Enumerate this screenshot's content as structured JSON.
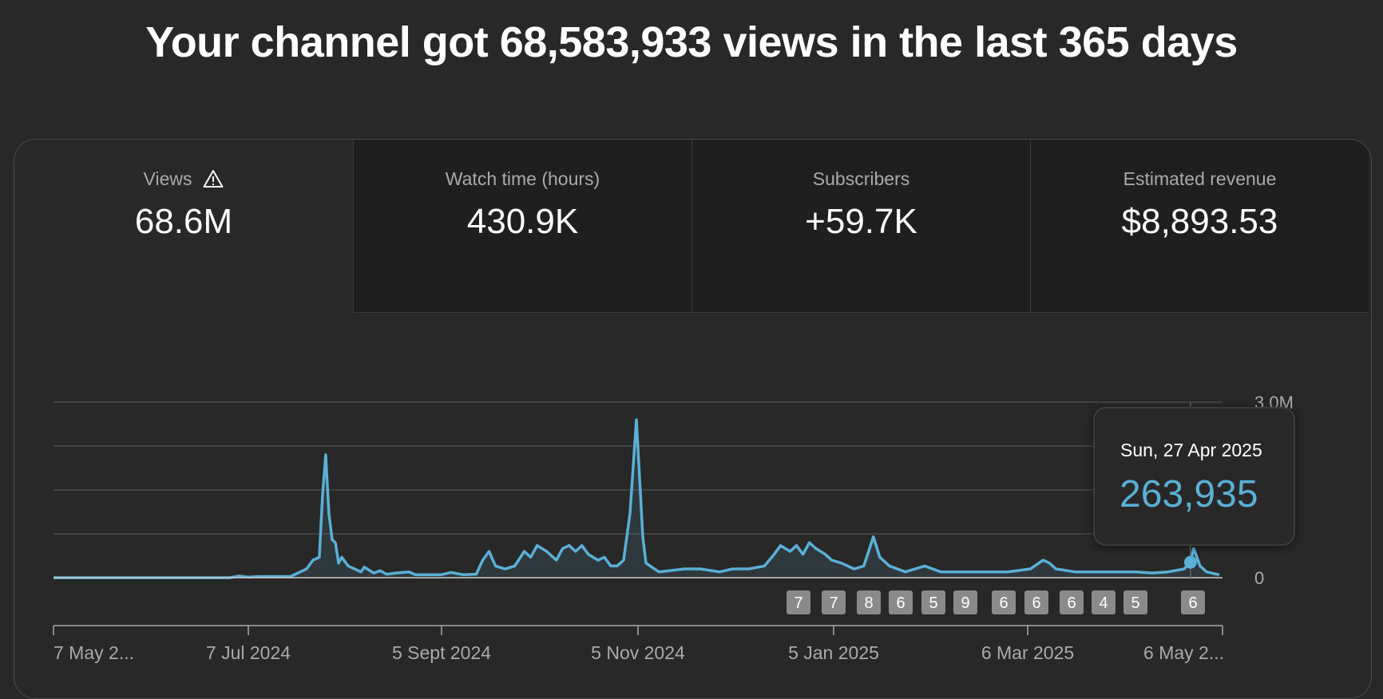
{
  "headline": "Your channel got 68,583,933 views in the last 365 days",
  "tabs": [
    {
      "label": "Views",
      "value": "68.6M",
      "warning": true
    },
    {
      "label": "Watch time (hours)",
      "value": "430.9K"
    },
    {
      "label": "Subscribers",
      "value": "+59.7K"
    },
    {
      "label": "Estimated revenue",
      "value": "$8,893.53"
    }
  ],
  "tooltip": {
    "date": "Sun, 27 Apr 2025",
    "value": "263,935"
  },
  "colors": {
    "line": "#5ab0d6",
    "background": "#282828",
    "tab_inactive": "#1f1f1f"
  },
  "chart_data": {
    "type": "area",
    "title": "",
    "xlabel": "",
    "ylabel": "",
    "x_tick_labels": [
      "7 May 2...",
      "7 Jul 2024",
      "5 Sept 2024",
      "5 Nov 2024",
      "5 Jan 2025",
      "6 Mar 2025",
      "6 May 2..."
    ],
    "x_start": "2024-05-07",
    "y_tick_labels": [
      "3.0M",
      "0"
    ],
    "ylim": [
      0,
      3000000
    ],
    "grid": true,
    "points": [
      [
        "2024-05-07",
        0
      ],
      [
        "2024-07-01",
        0
      ],
      [
        "2024-07-04",
        30000
      ],
      [
        "2024-07-07",
        10000
      ],
      [
        "2024-07-10",
        20000
      ],
      [
        "2024-07-20",
        20000
      ],
      [
        "2024-07-25",
        150000
      ],
      [
        "2024-07-27",
        300000
      ],
      [
        "2024-07-29",
        350000
      ],
      [
        "2024-07-30",
        1400000
      ],
      [
        "2024-07-31",
        2100000
      ],
      [
        "2024-08-01",
        1100000
      ],
      [
        "2024-08-02",
        650000
      ],
      [
        "2024-08-03",
        600000
      ],
      [
        "2024-08-04",
        250000
      ],
      [
        "2024-08-05",
        350000
      ],
      [
        "2024-08-07",
        200000
      ],
      [
        "2024-08-09",
        150000
      ],
      [
        "2024-08-11",
        100000
      ],
      [
        "2024-08-12",
        180000
      ],
      [
        "2024-08-15",
        80000
      ],
      [
        "2024-08-17",
        120000
      ],
      [
        "2024-08-19",
        60000
      ],
      [
        "2024-08-22",
        80000
      ],
      [
        "2024-08-26",
        100000
      ],
      [
        "2024-08-28",
        50000
      ],
      [
        "2024-09-05",
        50000
      ],
      [
        "2024-09-08",
        90000
      ],
      [
        "2024-09-12",
        50000
      ],
      [
        "2024-09-16",
        60000
      ],
      [
        "2024-09-18",
        300000
      ],
      [
        "2024-09-20",
        450000
      ],
      [
        "2024-09-22",
        200000
      ],
      [
        "2024-09-25",
        150000
      ],
      [
        "2024-09-28",
        200000
      ],
      [
        "2024-10-01",
        450000
      ],
      [
        "2024-10-03",
        350000
      ],
      [
        "2024-10-05",
        550000
      ],
      [
        "2024-10-08",
        450000
      ],
      [
        "2024-10-11",
        300000
      ],
      [
        "2024-10-13",
        500000
      ],
      [
        "2024-10-15",
        550000
      ],
      [
        "2024-10-17",
        450000
      ],
      [
        "2024-10-19",
        550000
      ],
      [
        "2024-10-21",
        400000
      ],
      [
        "2024-10-24",
        300000
      ],
      [
        "2024-10-26",
        350000
      ],
      [
        "2024-10-28",
        200000
      ],
      [
        "2024-10-30",
        200000
      ],
      [
        "2024-11-01",
        300000
      ],
      [
        "2024-11-03",
        1100000
      ],
      [
        "2024-11-05",
        2700000
      ],
      [
        "2024-11-07",
        700000
      ],
      [
        "2024-11-08",
        250000
      ],
      [
        "2024-11-12",
        100000
      ],
      [
        "2024-11-20",
        150000
      ],
      [
        "2024-11-25",
        150000
      ],
      [
        "2024-12-01",
        100000
      ],
      [
        "2024-12-05",
        150000
      ],
      [
        "2024-12-10",
        150000
      ],
      [
        "2024-12-15",
        200000
      ],
      [
        "2024-12-18",
        400000
      ],
      [
        "2024-12-20",
        550000
      ],
      [
        "2024-12-23",
        450000
      ],
      [
        "2024-12-25",
        550000
      ],
      [
        "2024-12-27",
        400000
      ],
      [
        "2024-12-29",
        600000
      ],
      [
        "2024-12-31",
        500000
      ],
      [
        "2025-01-03",
        400000
      ],
      [
        "2025-01-05",
        300000
      ],
      [
        "2025-01-08",
        250000
      ],
      [
        "2025-01-12",
        150000
      ],
      [
        "2025-01-15",
        200000
      ],
      [
        "2025-01-18",
        700000
      ],
      [
        "2025-01-20",
        350000
      ],
      [
        "2025-01-23",
        200000
      ],
      [
        "2025-01-28",
        100000
      ],
      [
        "2025-02-03",
        200000
      ],
      [
        "2025-02-08",
        100000
      ],
      [
        "2025-02-15",
        100000
      ],
      [
        "2025-02-22",
        100000
      ],
      [
        "2025-03-01",
        100000
      ],
      [
        "2025-03-08",
        150000
      ],
      [
        "2025-03-12",
        300000
      ],
      [
        "2025-03-14",
        250000
      ],
      [
        "2025-03-16",
        150000
      ],
      [
        "2025-03-22",
        100000
      ],
      [
        "2025-04-01",
        100000
      ],
      [
        "2025-04-10",
        100000
      ],
      [
        "2025-04-15",
        80000
      ],
      [
        "2025-04-20",
        100000
      ],
      [
        "2025-04-25",
        150000
      ],
      [
        "2025-04-27",
        263935
      ],
      [
        "2025-04-28",
        500000
      ],
      [
        "2025-04-30",
        200000
      ],
      [
        "2025-05-02",
        100000
      ],
      [
        "2025-05-06",
        50000
      ]
    ],
    "highlight": {
      "date": "2025-04-27",
      "value": 263935
    },
    "annotation_markers": [
      "7",
      "7",
      "8",
      "6",
      "5",
      "9",
      "6",
      "6",
      "6",
      "4",
      "5",
      "6"
    ]
  }
}
